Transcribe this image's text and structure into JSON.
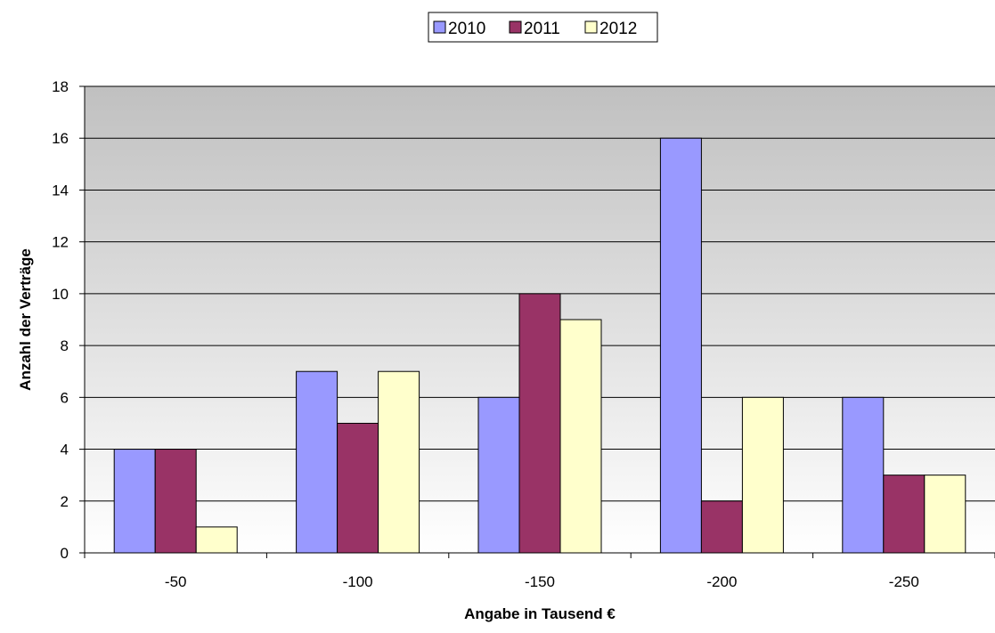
{
  "chart_data": {
    "type": "bar",
    "categories": [
      "-50",
      "-100",
      "-150",
      "-200",
      "-250"
    ],
    "series": [
      {
        "name": "2010",
        "values": [
          4,
          7,
          6,
          16,
          6
        ],
        "color": "#9999ff"
      },
      {
        "name": "2011",
        "values": [
          4,
          5,
          10,
          2,
          3
        ],
        "color": "#993366"
      },
      {
        "name": "2012",
        "values": [
          1,
          7,
          9,
          6,
          3
        ],
        "color": "#ffffcc"
      }
    ],
    "title": "",
    "xlabel": "Angabe in Tausend €",
    "ylabel": "Anzahl der Verträge",
    "ylim": [
      0,
      18
    ],
    "yticks": [
      0,
      2,
      4,
      6,
      8,
      10,
      12,
      14,
      16,
      18
    ],
    "grid": true,
    "legend_position": "top-center",
    "plot_background": "gradient gray to white"
  }
}
